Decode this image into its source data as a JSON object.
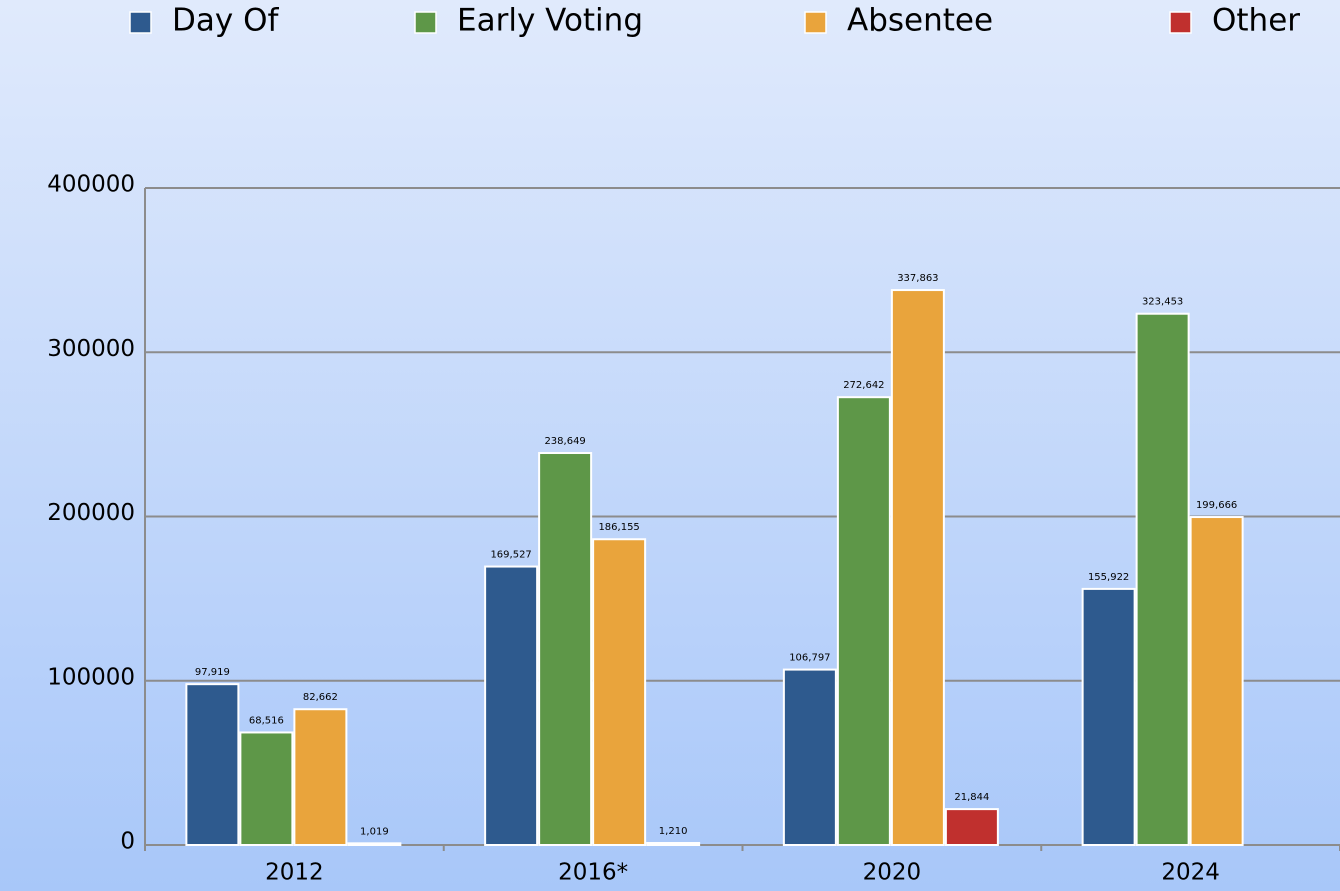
{
  "chart_data": {
    "type": "bar",
    "categories": [
      "2012",
      "2016*",
      "2020",
      "2024"
    ],
    "series": [
      {
        "name": "Day Of",
        "color": "#2e5a8e",
        "values": [
          97919,
          169527,
          106797,
          155922
        ],
        "value_labels": [
          "97,919",
          "169,527",
          "106,797",
          "155,922"
        ]
      },
      {
        "name": "Early Voting",
        "color": "#5e9748",
        "values": [
          68516,
          238649,
          272642,
          323453
        ],
        "value_labels": [
          "68,516",
          "238,649",
          "272,642",
          "323,453"
        ]
      },
      {
        "name": "Absentee",
        "color": "#e9a43c",
        "values": [
          82662,
          186155,
          337863,
          199666
        ],
        "value_labels": [
          "82,662",
          "186,155",
          "337,863",
          "199,666"
        ]
      },
      {
        "name": "Other",
        "color": "#c0302e",
        "values": [
          1019,
          1210,
          21844,
          null
        ],
        "value_labels": [
          "1,019",
          "1,210",
          "21,844",
          null
        ]
      }
    ],
    "ylim": [
      0,
      400000
    ],
    "yticks": [
      0,
      100000,
      200000,
      300000,
      400000
    ],
    "grid": true,
    "legend": "top"
  }
}
